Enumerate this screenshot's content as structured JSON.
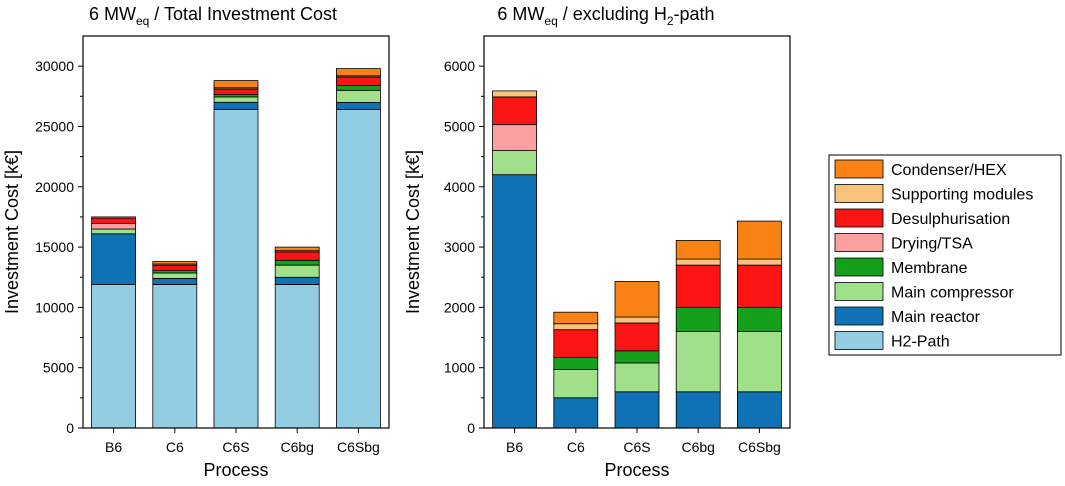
{
  "colors": {
    "H2-Path": "#92CDE3",
    "Main reactor": "#0E72B5",
    "Main compressor": "#A0E08A",
    "Membrane": "#14A01C",
    "Drying/TSA": "#FAA0A0",
    "Desulphurisation": "#FA1414",
    "Supporting modules": "#FAC37C",
    "Condenser/HEX": "#FA8214"
  },
  "legend": {
    "entries": [
      "Condenser/HEX",
      "Supporting modules",
      "Desulphurisation",
      "Drying/TSA",
      "Membrane",
      "Main compressor",
      "Main reactor",
      "H2-Path"
    ]
  },
  "chart_data": [
    {
      "type": "bar",
      "stacked": true,
      "title_main": "6 MW",
      "title_sub": "eq",
      "title_rest": " / Total Investment Cost",
      "xlabel": "Process",
      "ylabel": "Investment Cost [k€]",
      "ylim": [
        0,
        32500
      ],
      "yticks": [
        0,
        5000,
        10000,
        15000,
        20000,
        25000,
        30000
      ],
      "categories": [
        "B6",
        "C6",
        "C6S",
        "C6bg",
        "C6Sbg"
      ],
      "series": [
        {
          "name": "H2-Path",
          "values": [
            11900,
            11900,
            26400,
            11900,
            26400
          ]
        },
        {
          "name": "Main reactor",
          "values": [
            4200,
            500,
            600,
            600,
            600
          ]
        },
        {
          "name": "Main compressor",
          "values": [
            400,
            450,
            450,
            1000,
            1000
          ]
        },
        {
          "name": "Membrane",
          "values": [
            0,
            200,
            200,
            400,
            400
          ]
        },
        {
          "name": "Drying/TSA",
          "values": [
            450,
            0,
            0,
            0,
            0
          ]
        },
        {
          "name": "Desulphurisation",
          "values": [
            450,
            450,
            450,
            700,
            700
          ]
        },
        {
          "name": "Supporting modules",
          "values": [
            100,
            100,
            100,
            100,
            100
          ]
        },
        {
          "name": "Condenser/HEX",
          "values": [
            0,
            200,
            600,
            300,
            600
          ]
        }
      ]
    },
    {
      "type": "bar",
      "stacked": true,
      "title_main": "6 MW",
      "title_sub": "eq",
      "title_rest": " / excluding H",
      "title_sub2": "2",
      "title_rest2": "-path",
      "xlabel": "Process",
      "ylabel": "Investment Cost [k€]",
      "ylim": [
        0,
        6500
      ],
      "yticks": [
        0,
        1000,
        2000,
        3000,
        4000,
        5000,
        6000
      ],
      "categories": [
        "B6",
        "C6",
        "C6S",
        "C6bg",
        "C6Sbg"
      ],
      "series": [
        {
          "name": "Main reactor",
          "values": [
            4200,
            500,
            600,
            600,
            600
          ]
        },
        {
          "name": "Main compressor",
          "values": [
            400,
            470,
            480,
            1000,
            1000
          ]
        },
        {
          "name": "Membrane",
          "values": [
            0,
            200,
            200,
            400,
            400
          ]
        },
        {
          "name": "Drying/TSA",
          "values": [
            430,
            0,
            0,
            0,
            0
          ]
        },
        {
          "name": "Desulphurisation",
          "values": [
            460,
            460,
            460,
            700,
            700
          ]
        },
        {
          "name": "Supporting modules",
          "values": [
            100,
            100,
            100,
            100,
            100
          ]
        },
        {
          "name": "Condenser/HEX",
          "values": [
            0,
            190,
            590,
            310,
            630
          ]
        }
      ]
    }
  ]
}
